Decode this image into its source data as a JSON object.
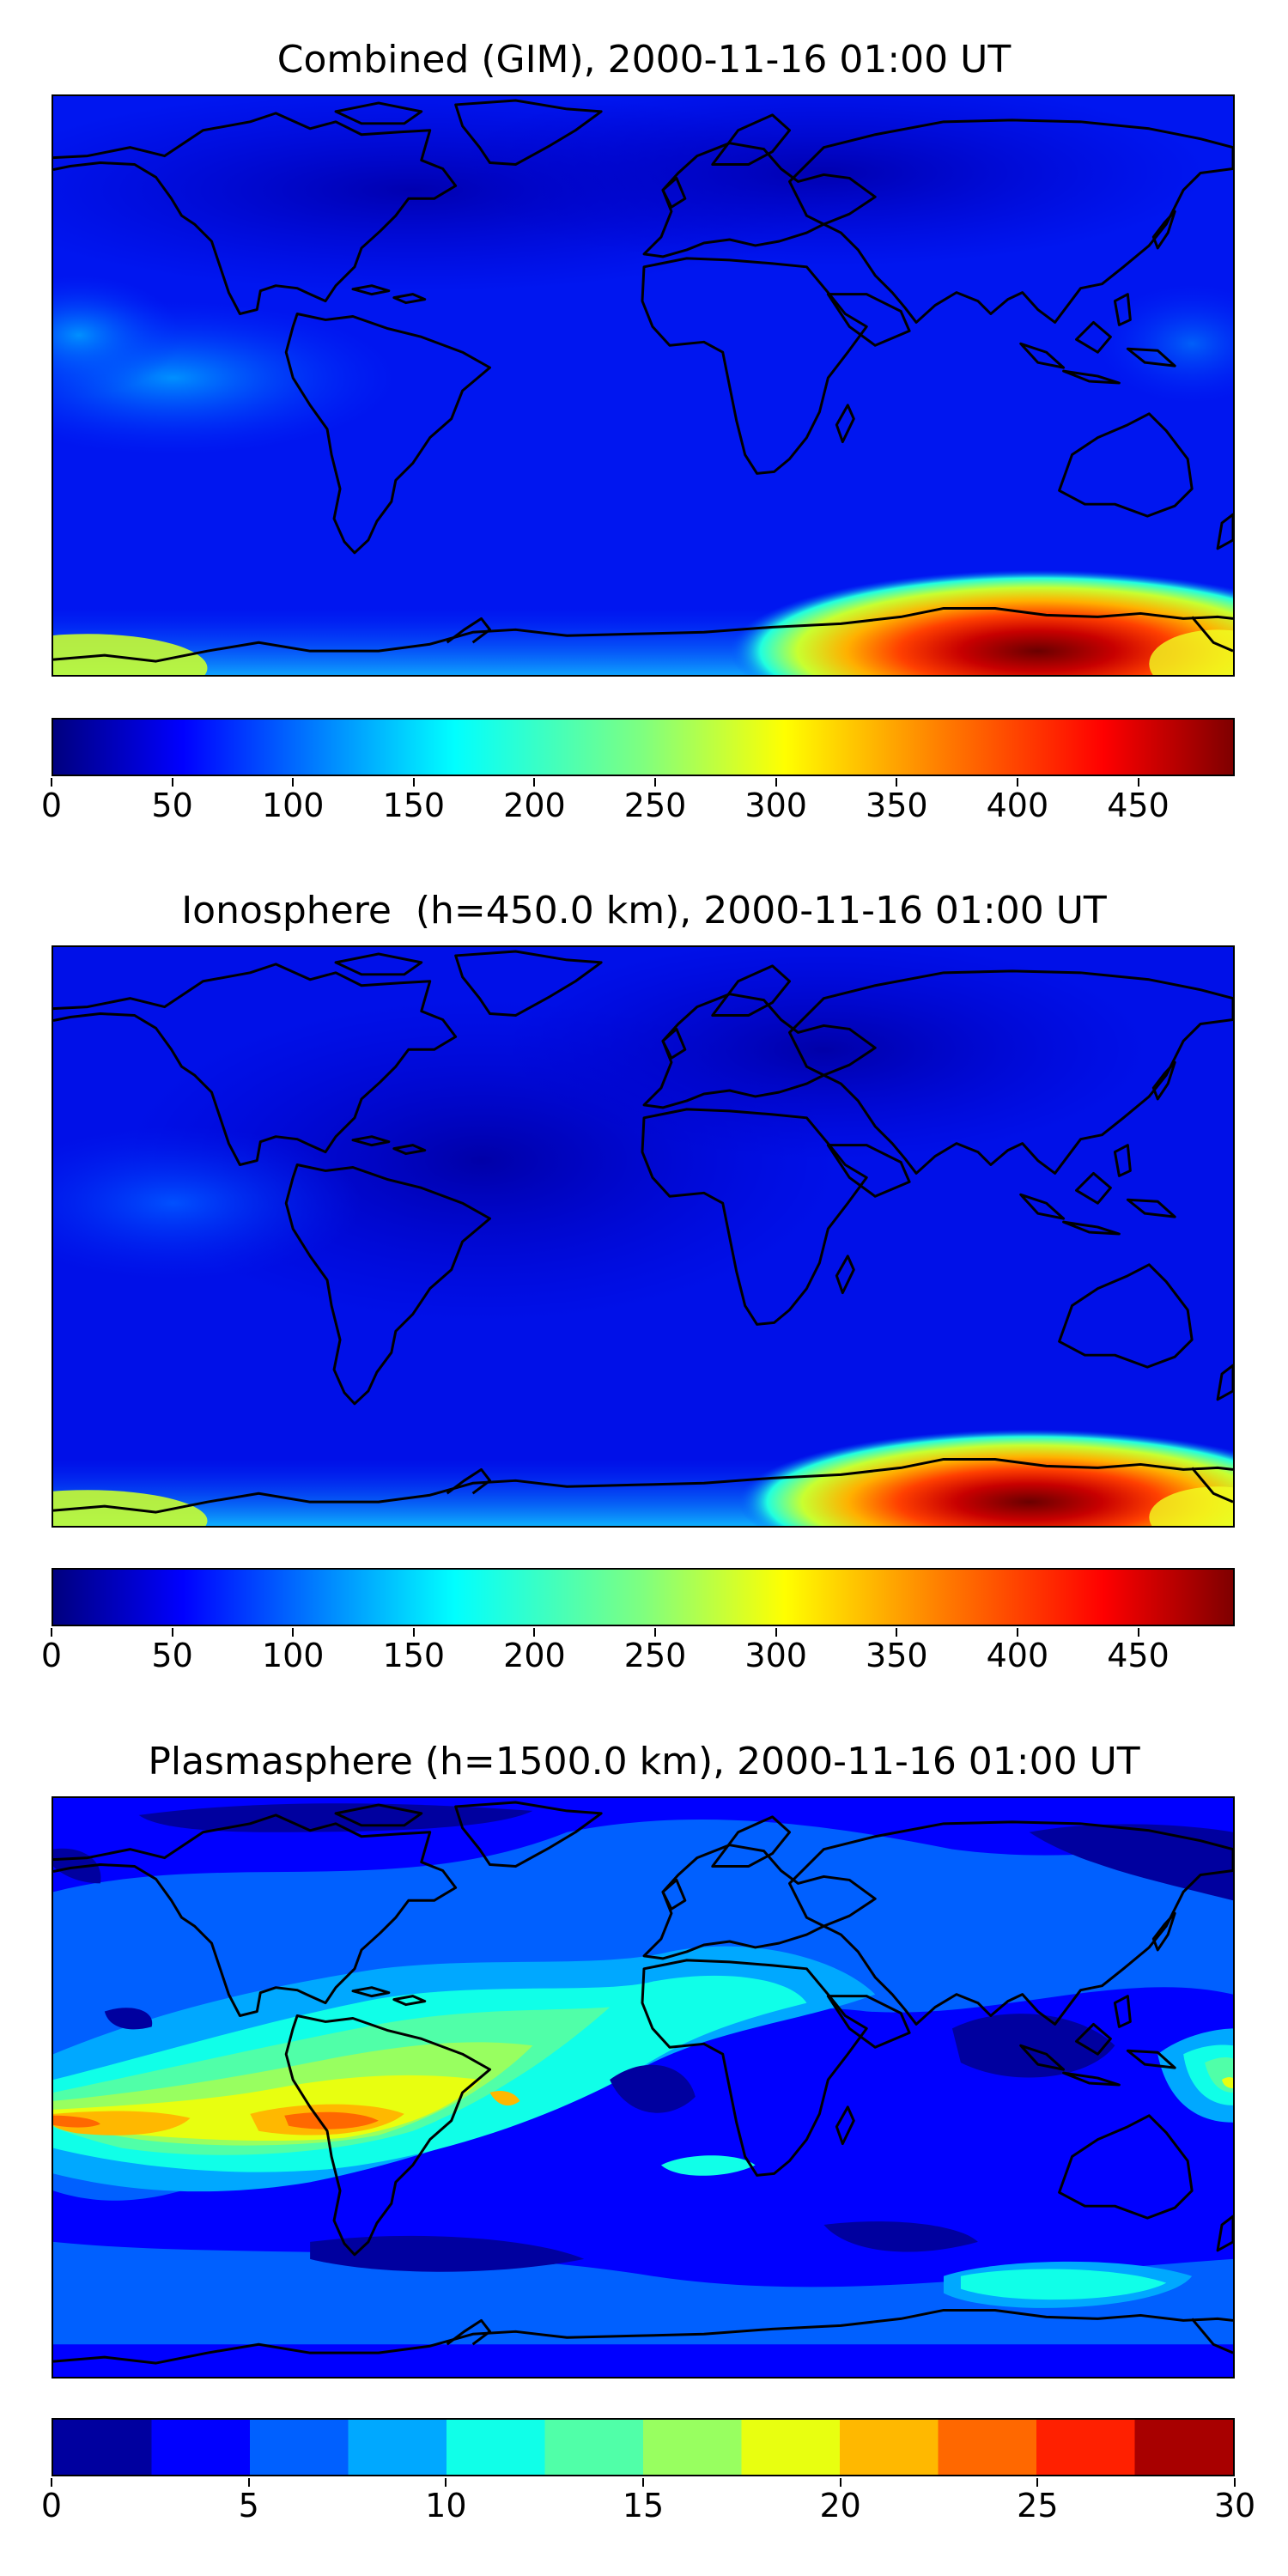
{
  "panels": [
    {
      "title": "Combined (GIM), 2000-11-16 01:00 UT",
      "colormap": "jet-continuous",
      "colorbar": {
        "min": 0,
        "max": 490,
        "ticks": [
          "0",
          "50",
          "100",
          "150",
          "200",
          "250",
          "300",
          "350",
          "400",
          "450"
        ]
      },
      "field": {
        "background_level": 60,
        "features": [
          "low-latitude crest over Pacific",
          "strong maximum near Antarctica south of Australia (~490)"
        ]
      }
    },
    {
      "title": "Ionosphere  (h=450.0 km), 2000-11-16 01:00 UT",
      "colormap": "jet-continuous",
      "colorbar": {
        "min": 0,
        "max": 490,
        "ticks": [
          "0",
          "50",
          "100",
          "150",
          "200",
          "250",
          "300",
          "350",
          "400",
          "450"
        ]
      },
      "field": {
        "background_level": 50,
        "features": [
          "strong maximum near Antarctica south of Australia (~490)"
        ]
      }
    },
    {
      "title": "Plasmasphere (h=1500.0 km), 2000-11-16 01:00 UT",
      "colormap": "jet-discrete-12",
      "colorbar": {
        "min": 0,
        "max": 30,
        "ticks": [
          "0",
          "5",
          "10",
          "15",
          "20",
          "25",
          "30"
        ]
      },
      "field": {
        "background_level": 6,
        "features": [
          "equatorial band 15–25 over South Pacific and South America",
          "lows ~0–2.5 over high northern latitudes"
        ]
      }
    }
  ],
  "colors": {
    "jet_discrete": [
      "#00009f",
      "#0000ff",
      "#0060ff",
      "#00a8ff",
      "#10ffe8",
      "#50ffa8",
      "#98ff60",
      "#e8ff10",
      "#ffb800",
      "#ff6800",
      "#ff2000",
      "#a80000"
    ],
    "jet_continuous": [
      "#00007f",
      "#0000ff",
      "#007fff",
      "#00ffff",
      "#7fff7f",
      "#ffff00",
      "#ff7f00",
      "#ff0000",
      "#7f0000"
    ],
    "coastline": "#000000"
  }
}
